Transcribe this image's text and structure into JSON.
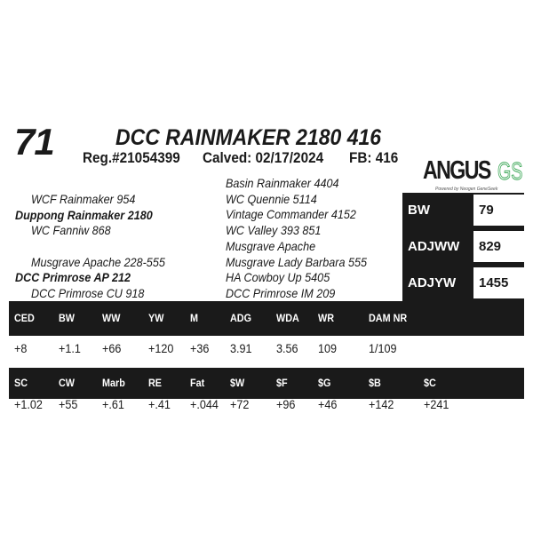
{
  "lot": "71",
  "name": "DCC RAINMAKER 2180 416",
  "reg": "Reg.#21054399",
  "calved": "Calved: 02/17/2024",
  "fb": "FB: 416",
  "logo": {
    "word": "ANGUS",
    "suffix": "GS",
    "tagline": "Powered by Neogen GeneSeek",
    "accent": "#3aa655"
  },
  "pedigree": {
    "left": [
      {
        "text": "WCF Rainmaker 954",
        "bold": false
      },
      {
        "text": "Duppong Rainmaker 2180",
        "bold": true
      },
      {
        "text": "WC Fanniw 868",
        "bold": false
      },
      {
        "text": "Musgrave Apache 228-555",
        "bold": false
      },
      {
        "text": "DCC Primrose AP 212",
        "bold": true
      },
      {
        "text": "DCC Primrose CU 918",
        "bold": false
      }
    ],
    "right": [
      "Basin Rainmaker 4404",
      "WC Quennie 5114",
      "Vintage Commander 4152",
      "WC Valley 393 851",
      "Musgrave Apache",
      "Musgrave Lady Barbara 555",
      "HA Cowboy Up 5405",
      "DCC Primrose IM 209"
    ]
  },
  "side": [
    {
      "label": "BW",
      "value": "79"
    },
    {
      "label": "ADJWW",
      "value": "829"
    },
    {
      "label": "ADJYW",
      "value": "1455"
    }
  ],
  "epd1": {
    "headers": [
      "CED",
      "BW",
      "WW",
      "YW",
      "M",
      "ADG",
      "WDA",
      "WR",
      "DAM NR"
    ],
    "values": [
      "+8",
      "+1.1",
      "+66",
      "+120",
      "+36",
      "3.91",
      "3.56",
      "109",
      "1/109"
    ]
  },
  "epd2": {
    "headers": [
      "SC",
      "CW",
      "Marb",
      "RE",
      "Fat",
      "$W",
      "$F",
      "$G",
      "$B",
      "$C"
    ],
    "values": [
      "+1.02",
      "+55",
      "+.61",
      "+.41",
      "+.044",
      "+72",
      "+96",
      "+46",
      "+142",
      "+241"
    ]
  }
}
